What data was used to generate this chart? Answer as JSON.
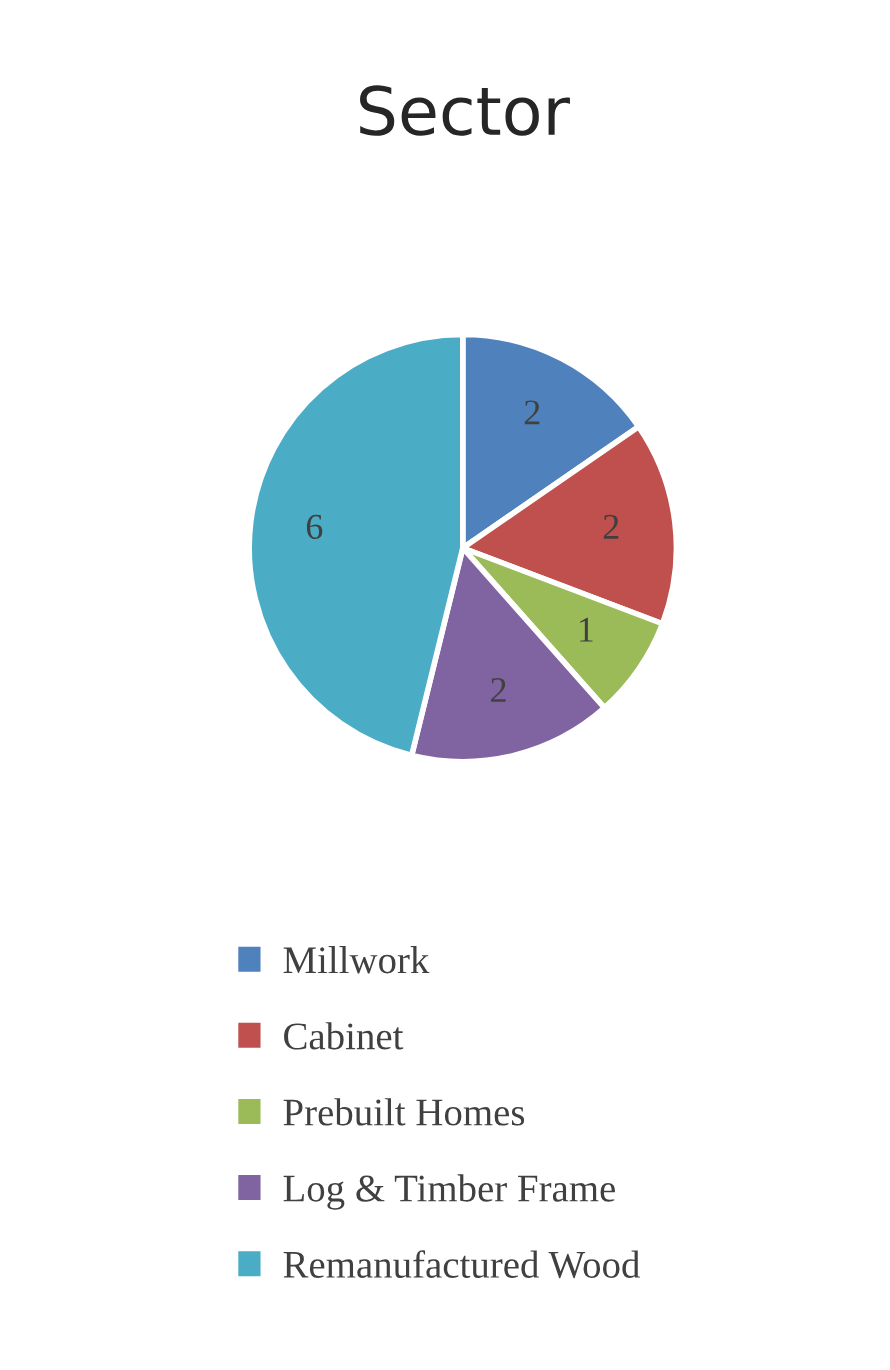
{
  "chart_data": {
    "type": "pie",
    "title": "Sector",
    "categories": [
      "Millwork",
      "Cabinet",
      "Prebuilt Homes",
      "Log & Timber Frame",
      "Remanufactured Wood"
    ],
    "values": [
      2,
      2,
      1,
      2,
      6
    ],
    "colors": [
      "#4f81bd",
      "#c0504d",
      "#9bbb59",
      "#8064a2",
      "#4bacc6"
    ],
    "data_labels": true,
    "legend": "bottom"
  }
}
